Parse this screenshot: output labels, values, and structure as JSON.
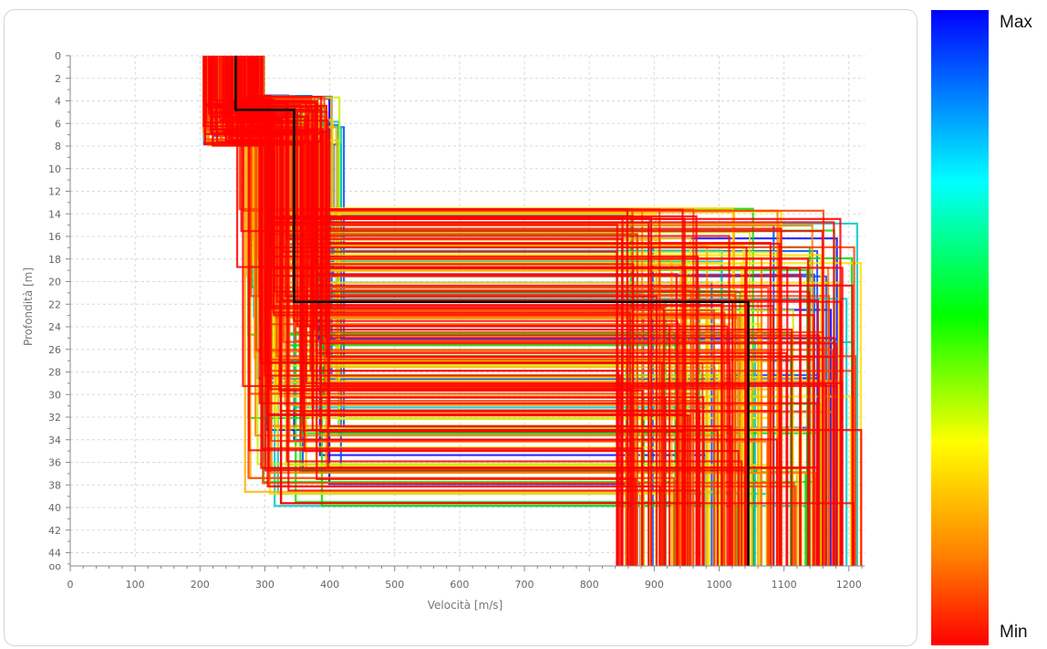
{
  "chart_data": {
    "type": "line",
    "xlabel": "Velocità [m/s]",
    "ylabel": "Profondità [m]",
    "xlim": [
      0,
      1220
    ],
    "ylim": [
      0,
      45
    ],
    "x_ticks": [
      0,
      100,
      200,
      300,
      400,
      500,
      600,
      700,
      800,
      900,
      1000,
      1100,
      1200
    ],
    "y_ticks": [
      0,
      2,
      4,
      6,
      8,
      10,
      12,
      14,
      16,
      18,
      20,
      22,
      24,
      26,
      28,
      30,
      32,
      34,
      36,
      38,
      40,
      42,
      44
    ],
    "y_bottom_label": "oo",
    "grid": true,
    "colorbar": {
      "max_label": "Max",
      "min_label": "Min"
    },
    "best_profile": {
      "name": "",
      "color": "#000000",
      "layers": [
        {
          "vs": 255,
          "top": 0,
          "bottom": 4.8
        },
        {
          "vs": 345,
          "top": 4.8,
          "bottom": 21.8
        },
        {
          "vs": 1045,
          "top": 21.8,
          "bottom": "oo"
        }
      ]
    },
    "ensemble_envelope": {
      "vs_layer1": [
        205,
        300
      ],
      "layer1_bottom": [
        3.5,
        8.0
      ],
      "vs_layer2": [
        255,
        460
      ],
      "layer2_bottom": [
        13.5,
        40.0
      ],
      "vs_halfspace": [
        775,
        1220
      ]
    },
    "ensemble_colors": [
      "#ff0000",
      "#ff4000",
      "#ff8000",
      "#ffb000",
      "#ffe000",
      "#c8f000",
      "#00e000",
      "#00c8c8",
      "#0050ff",
      "#0000ff"
    ]
  }
}
